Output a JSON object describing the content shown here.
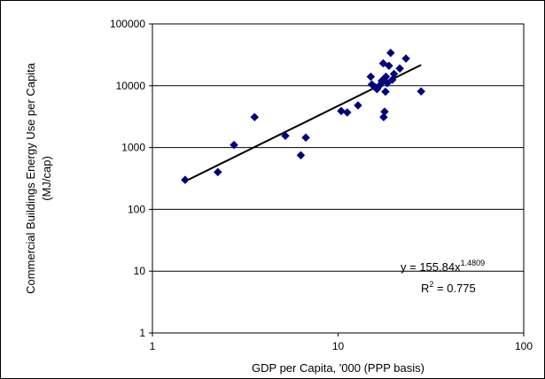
{
  "chart_data": {
    "type": "scatter",
    "title": "",
    "xlabel": "GDP per Capita, '000 (PPP basis)",
    "ylabel_line1": "Commercial Buildings Energy Use per Capita",
    "ylabel_line2": "(MJ/cap)",
    "x_scale": "log",
    "y_scale": "log",
    "xlim": [
      1,
      100
    ],
    "ylim": [
      1,
      100000
    ],
    "x_ticks": [
      1,
      10,
      100
    ],
    "x_tick_labels": [
      "1",
      "10",
      "100"
    ],
    "y_ticks": [
      1,
      10,
      100,
      1000,
      10000,
      100000
    ],
    "y_tick_labels": [
      "1",
      "10",
      "100",
      "1000",
      "10000",
      "100000"
    ],
    "grid": "horizontal",
    "marker": "diamond",
    "marker_color": "#00007f",
    "points": [
      {
        "x": 1.5,
        "y": 300
      },
      {
        "x": 2.25,
        "y": 400
      },
      {
        "x": 2.75,
        "y": 1100
      },
      {
        "x": 3.55,
        "y": 3100
      },
      {
        "x": 5.2,
        "y": 1550
      },
      {
        "x": 6.3,
        "y": 750
      },
      {
        "x": 6.7,
        "y": 1450
      },
      {
        "x": 10.4,
        "y": 3900
      },
      {
        "x": 11.2,
        "y": 3700
      },
      {
        "x": 12.8,
        "y": 4800
      },
      {
        "x": 15.0,
        "y": 14000
      },
      {
        "x": 15.2,
        "y": 10500
      },
      {
        "x": 15.8,
        "y": 9500
      },
      {
        "x": 16.2,
        "y": 8800
      },
      {
        "x": 16.8,
        "y": 10200
      },
      {
        "x": 17.2,
        "y": 12000
      },
      {
        "x": 17.5,
        "y": 23000
      },
      {
        "x": 17.6,
        "y": 3100
      },
      {
        "x": 17.8,
        "y": 3800
      },
      {
        "x": 18.0,
        "y": 8000
      },
      {
        "x": 18.1,
        "y": 14000
      },
      {
        "x": 18.4,
        "y": 11000
      },
      {
        "x": 18.8,
        "y": 21000
      },
      {
        "x": 19.2,
        "y": 34000
      },
      {
        "x": 19.6,
        "y": 12500
      },
      {
        "x": 20.0,
        "y": 15500
      },
      {
        "x": 21.5,
        "y": 19000
      },
      {
        "x": 23.2,
        "y": 27500
      },
      {
        "x": 28.0,
        "y": 8100
      }
    ],
    "trendline": {
      "type": "power",
      "coefficient": 155.84,
      "exponent": 1.4809,
      "x_range": [
        1.5,
        28
      ],
      "color": "#000000"
    },
    "annotations": {
      "equation_prefix": "y = 155.84x",
      "equation_exponent": "1.4809",
      "r2_prefix": "R",
      "r2_exponent": "2",
      "r2_suffix": " = 0.775"
    }
  }
}
